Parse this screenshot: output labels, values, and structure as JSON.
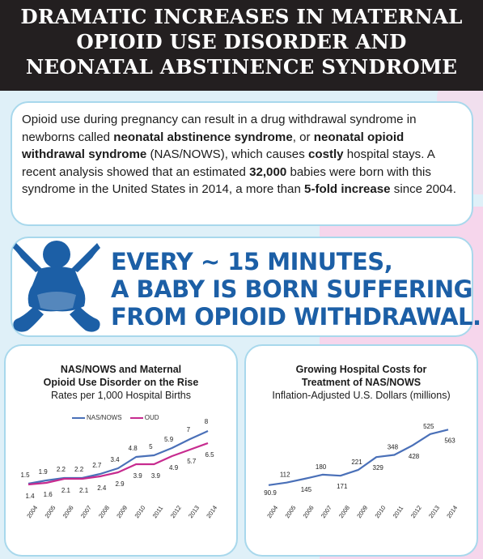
{
  "header": {
    "line1": "DRAMATIC INCREASES IN MATERNAL",
    "line2": "OPIOID USE DISORDER AND",
    "line3": "NEONATAL ABSTINENCE SYNDROME"
  },
  "intro": {
    "t1": "Opioid use during pregnancy can result in a drug withdrawal syndrome in newborns called ",
    "b1": "neonatal abstinence syndrome",
    "t2": ", or ",
    "b2": "neonatal opioid withdrawal syndrome",
    "t3": " (NAS/NOWS), which causes ",
    "b3": "costly",
    "t4": " hospital stays. A recent analysis showed that an estimated ",
    "b4": "32,000",
    "t5": " babies were born with this syndrome in the United States in 2014, a more than ",
    "b5": "5-fold increase",
    "t6": " since 2004."
  },
  "stat": {
    "line1": "EVERY ~ 15 MINUTES,",
    "line2": "A BABY IS BORN SUFFERING",
    "line3": "FROM OPIOID WITHDRAWAL."
  },
  "colors": {
    "blue": "#4a70b8",
    "magenta": "#c72b8f",
    "brand": "#1c5fa6",
    "header_bg": "#231f20"
  },
  "chart_data": [
    {
      "type": "line",
      "title": "NAS/NOWS and Maternal Opioid Use Disorder on the Rise",
      "subtitle": "Rates per 1,000 Hospital Births",
      "categories": [
        "2004",
        "2005",
        "2006",
        "2007",
        "2008",
        "2009",
        "2010",
        "2011",
        "2012",
        "2013",
        "2014"
      ],
      "series": [
        {
          "name": "NAS/NOWS",
          "values": [
            1.5,
            1.9,
            2.2,
            2.2,
            2.7,
            3.4,
            4.8,
            5.0,
            5.9,
            7.0,
            8.0
          ]
        },
        {
          "name": "OUD",
          "values": [
            1.4,
            1.6,
            2.1,
            2.1,
            2.4,
            2.9,
            3.9,
            3.9,
            4.9,
            5.7,
            6.5
          ]
        }
      ],
      "ylim": [
        0,
        9
      ],
      "legend": "top"
    },
    {
      "type": "line",
      "title": "Growing Hospital Costs for Treatment of NAS/NOWS",
      "subtitle": "Inflation-Adjusted U.S. Dollars (millions)",
      "categories": [
        "2004",
        "2005",
        "2006",
        "2007",
        "2008",
        "2009",
        "2010",
        "2011",
        "2012",
        "2013",
        "2014"
      ],
      "series": [
        {
          "values": [
            90.9,
            112,
            145,
            180,
            171,
            221,
            329,
            348,
            428,
            525,
            563
          ]
        }
      ],
      "ylim": [
        0,
        620
      ]
    }
  ]
}
